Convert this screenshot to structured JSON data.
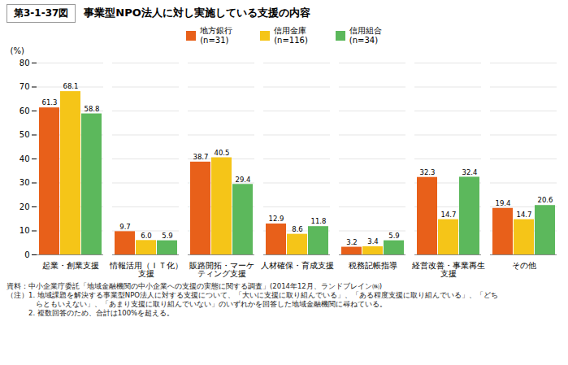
{
  "chart_data": {
    "type": "bar",
    "figure_label": "第3-1-37図",
    "title": "事業型NPO法人に対し実施している支援の内容",
    "y_label": "(%)",
    "categories": [
      "起業・創業支援",
      "情報活用（ＩＴ化）\n支援",
      "販路開拓・マーケ\nティング支援",
      "人材確保・育成支援",
      "税務記帳指導",
      "経営改善・事業再生\n支援",
      "その他"
    ],
    "series": [
      {
        "name": "地方銀行\n(n=31)",
        "color": "#E8601A",
        "values": [
          61.3,
          9.7,
          38.7,
          12.9,
          3.2,
          32.3,
          19.4
        ],
        "value_labels": [
          "61.3",
          "9.7",
          "38.7",
          "12.9",
          "3.2",
          "32.3",
          "19.4"
        ]
      },
      {
        "name": "信用金庫\n(n=116)",
        "color": "#F5C518",
        "values": [
          68.1,
          6.0,
          40.5,
          8.6,
          3.4,
          14.7,
          14.7
        ],
        "value_labels": [
          "68.1",
          "6.0",
          "40.5",
          "8.6",
          "3.4",
          "14.7",
          "14.7"
        ]
      },
      {
        "name": "信用組合\n(n=34)",
        "color": "#5CB85C",
        "values": [
          58.8,
          5.9,
          29.4,
          11.8,
          5.9,
          32.4,
          20.6
        ],
        "value_labels": [
          "58.8",
          "5.9",
          "29.4",
          "11.8",
          "5.9",
          "32.4",
          "20.6"
        ]
      }
    ],
    "ylim": [
      0,
      80
    ],
    "yticks": [
      0,
      10,
      20,
      30,
      40,
      50,
      60,
      70,
      80
    ],
    "grid": true,
    "legend": "top",
    "data_labels": true,
    "annotations": [
      "資料：中小企業庁委託「地域金融機関の中小企業への支援の実態に関する調査」(2014年12月、ランドブレイン㈱)",
      "（注）1. 地域課題を解決する事業型NPO法人に対する支援について、「大いに支援に取り組んでいる」、「ある程度支援に取り組んでいる」、「どち",
      "　　　　らともいえない」、「あまり支援に取り組んでいない」のいずれかを回答した地域金融機関に尋ねている。",
      "　　　2. 複数回答のため、合計は100%を超える。"
    ]
  }
}
